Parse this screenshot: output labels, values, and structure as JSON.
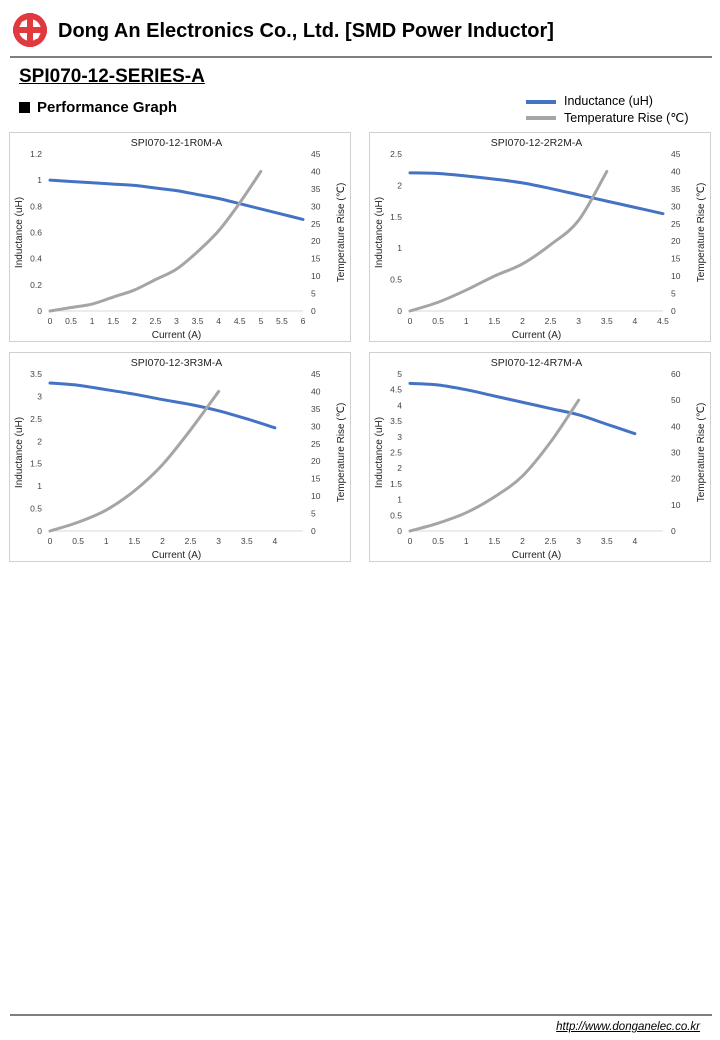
{
  "header": {
    "company": "Dong An Electronics Co., Ltd. [SMD Power Inductor]",
    "logo_color": "#e03a3e"
  },
  "title": "SPI070-12-SERIES-A",
  "section": "Performance Graph",
  "legend": [
    {
      "label": "Inductance (uH)",
      "color": "#4472c4"
    },
    {
      "label": "Temperature Rise (℃)",
      "color": "#a5a5a5"
    }
  ],
  "footer": {
    "url": "http://www.donganelec.co.kr"
  },
  "chart_data": [
    {
      "type": "line",
      "title": "SPI070-12-1R0M-A",
      "xlabel": "Current (A)",
      "ylabel": "Inductance (uH)",
      "y2label": "Temperature Rise (℃)",
      "xlim": [
        0,
        6
      ],
      "xticks": [
        0,
        0.5,
        1,
        1.5,
        2,
        2.5,
        3,
        3.5,
        4,
        4.5,
        5,
        5.5,
        6
      ],
      "ylim": [
        0,
        1.2
      ],
      "yticks": [
        0,
        0.2,
        0.4,
        0.6,
        0.8,
        1,
        1.2
      ],
      "y2lim": [
        0,
        45
      ],
      "y2ticks": [
        0,
        5,
        10,
        15,
        20,
        25,
        30,
        35,
        40,
        45
      ],
      "series": [
        {
          "name": "Inductance (uH)",
          "axis": "left",
          "color": "#4472c4",
          "x": [
            0,
            0.5,
            1,
            1.5,
            2,
            2.5,
            3,
            3.5,
            4,
            4.5,
            5,
            5.5,
            6
          ],
          "values": [
            1.0,
            0.99,
            0.98,
            0.97,
            0.96,
            0.94,
            0.92,
            0.89,
            0.86,
            0.82,
            0.78,
            0.74,
            0.7
          ]
        },
        {
          "name": "Temperature Rise (℃)",
          "axis": "right",
          "color": "#a5a5a5",
          "x": [
            0,
            0.5,
            1,
            1.5,
            2,
            2.5,
            3,
            3.5,
            4,
            4.5,
            5
          ],
          "values": [
            0,
            1,
            2,
            4,
            6,
            9,
            12,
            17,
            23,
            31,
            40
          ]
        }
      ]
    },
    {
      "type": "line",
      "title": "SPI070-12-2R2M-A",
      "xlabel": "Current (A)",
      "ylabel": "Inductance (uH)",
      "y2label": "Temperature Rise (℃)",
      "xlim": [
        0,
        4.5
      ],
      "xticks": [
        0,
        0.5,
        1,
        1.5,
        2,
        2.5,
        3,
        3.5,
        4,
        4.5
      ],
      "ylim": [
        0,
        2.5
      ],
      "yticks": [
        0,
        0.5,
        1,
        1.5,
        2,
        2.5
      ],
      "y2lim": [
        0,
        45
      ],
      "y2ticks": [
        0,
        5,
        10,
        15,
        20,
        25,
        30,
        35,
        40,
        45
      ],
      "series": [
        {
          "name": "Inductance (uH)",
          "axis": "left",
          "color": "#4472c4",
          "x": [
            0,
            0.5,
            1,
            1.5,
            2,
            2.5,
            3,
            3.5,
            4,
            4.5
          ],
          "values": [
            2.2,
            2.19,
            2.15,
            2.1,
            2.04,
            1.95,
            1.85,
            1.75,
            1.65,
            1.55
          ]
        },
        {
          "name": "Temperature Rise (℃)",
          "axis": "right",
          "color": "#a5a5a5",
          "x": [
            0,
            0.5,
            1,
            1.5,
            2,
            2.5,
            3,
            3.5
          ],
          "values": [
            0,
            2.5,
            6,
            10,
            13.5,
            19,
            26,
            40
          ]
        }
      ]
    },
    {
      "type": "line",
      "title": "SPI070-12-3R3M-A",
      "xlabel": "Current (A)",
      "ylabel": "Inductance (uH)",
      "y2label": "Temperature Rise (℃)",
      "xlim": [
        0,
        4.5
      ],
      "xticks": [
        0,
        0.5,
        1,
        1.5,
        2,
        2.5,
        3,
        3.5,
        4
      ],
      "ylim": [
        0,
        3.5
      ],
      "yticks": [
        0,
        0.5,
        1,
        1.5,
        2,
        2.5,
        3,
        3.5
      ],
      "y2lim": [
        0,
        45
      ],
      "y2ticks": [
        0,
        5,
        10,
        15,
        20,
        25,
        30,
        35,
        40,
        45
      ],
      "series": [
        {
          "name": "Inductance (uH)",
          "axis": "left",
          "color": "#4472c4",
          "x": [
            0,
            0.5,
            1,
            1.5,
            2,
            2.5,
            3,
            3.5,
            4
          ],
          "values": [
            3.3,
            3.25,
            3.15,
            3.05,
            2.93,
            2.82,
            2.68,
            2.5,
            2.3
          ]
        },
        {
          "name": "Temperature Rise (℃)",
          "axis": "right",
          "color": "#a5a5a5",
          "x": [
            0,
            0.5,
            1,
            1.5,
            2,
            2.5,
            3
          ],
          "values": [
            0,
            2.5,
            6,
            11.5,
            19,
            29,
            40
          ]
        }
      ]
    },
    {
      "type": "line",
      "title": "SPI070-12-4R7M-A",
      "xlabel": "Current (A)",
      "ylabel": "Inductance (uH)",
      "y2label": "Temperature Rise (℃)",
      "xlim": [
        0,
        4.5
      ],
      "xticks": [
        0,
        0.5,
        1,
        1.5,
        2,
        2.5,
        3,
        3.5,
        4
      ],
      "ylim": [
        0,
        5
      ],
      "yticks": [
        0,
        0.5,
        1,
        1.5,
        2,
        2.5,
        3,
        3.5,
        4,
        4.5,
        5
      ],
      "y2lim": [
        0,
        60
      ],
      "y2ticks": [
        0,
        10,
        20,
        30,
        40,
        50,
        60
      ],
      "series": [
        {
          "name": "Inductance (uH)",
          "axis": "left",
          "color": "#4472c4",
          "x": [
            0,
            0.5,
            1,
            1.5,
            2,
            2.5,
            3,
            3.5,
            4
          ],
          "values": [
            4.7,
            4.65,
            4.5,
            4.3,
            4.1,
            3.9,
            3.7,
            3.4,
            3.1
          ]
        },
        {
          "name": "Temperature Rise (℃)",
          "axis": "right",
          "color": "#a5a5a5",
          "x": [
            0,
            0.5,
            1,
            1.5,
            2,
            2.5,
            3
          ],
          "values": [
            0,
            3,
            7,
            13,
            21,
            34,
            50
          ]
        }
      ]
    }
  ]
}
